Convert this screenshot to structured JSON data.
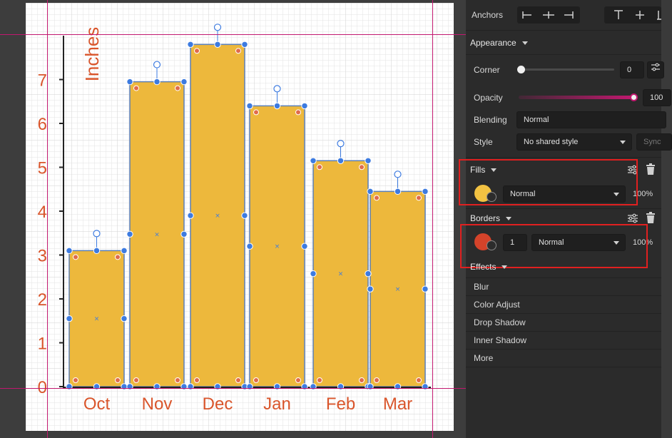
{
  "colors": {
    "bar_fill": "#EDB83C",
    "bar_stroke": "#5a7fb8",
    "text_orange": "#D9552B",
    "handle_blue": "#3d7be0",
    "guide_magenta": "#C2186F",
    "border_swatch": "#D4432A",
    "fill_swatch": "#F2C242",
    "highlight_red": "#E02020"
  },
  "chart_data": {
    "type": "bar",
    "categories": [
      "Oct",
      "Nov",
      "Dec",
      "Jan",
      "Feb",
      "Mar"
    ],
    "values": [
      3.1,
      6.95,
      7.8,
      6.4,
      5.15,
      4.45
    ],
    "title": "",
    "xlabel": "",
    "ylabel": "Inches",
    "ylim": [
      0,
      8
    ],
    "yticks": [
      "0",
      "1",
      "2",
      "3",
      "4",
      "5",
      "6",
      "7"
    ],
    "grid": true
  },
  "panel": {
    "anchors_label": "Anchors",
    "appearance_label": "Appearance",
    "corner": {
      "label": "Corner",
      "value": "0"
    },
    "opacity": {
      "label": "Opacity",
      "value": "100"
    },
    "blending": {
      "label": "Blending",
      "value": "Normal"
    },
    "style": {
      "label": "Style",
      "value": "No shared style",
      "sync_label": "Sync"
    },
    "fills": {
      "label": "Fills",
      "blend": "Normal",
      "opacity": "100%",
      "icon": "fill-swatch"
    },
    "borders": {
      "label": "Borders",
      "width": "1",
      "blend": "Normal",
      "opacity": "100%",
      "icon": "border-swatch"
    },
    "effects": {
      "label": "Effects",
      "items": [
        "Blur",
        "Color Adjust",
        "Drop Shadow",
        "Inner Shadow",
        "More"
      ]
    }
  }
}
